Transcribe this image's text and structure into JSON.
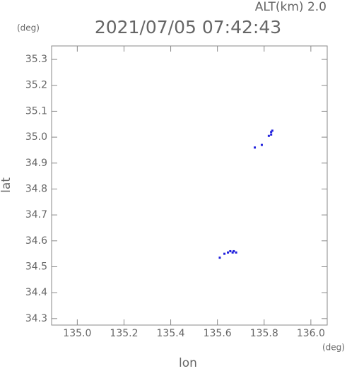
{
  "chart_data": {
    "type": "scatter",
    "title": "2021/07/05 07:42:43",
    "annotation": "ALT(km) 2.0",
    "y_unit": "(deg)",
    "x_unit": "(deg)",
    "x_label": "lon",
    "y_label": "lat",
    "xlim": [
      134.89,
      136.07
    ],
    "ylim": [
      34.275,
      35.352
    ],
    "xticks": [
      {
        "value": 135,
        "label": "135.0"
      },
      135.2,
      135.4,
      135.6,
      135.8,
      {
        "value": 136,
        "label": "136.0"
      }
    ],
    "yticks": [
      34.3,
      34.4,
      34.5,
      34.6,
      34.7,
      34.8,
      34.9,
      {
        "value": 35,
        "label": "35.0"
      },
      35.1,
      35.2,
      35.3
    ],
    "series": [
      {
        "color": "#2222dd",
        "x": [
          135.83,
          135.835,
          135.83,
          135.82,
          135.79,
          135.76,
          135.61,
          135.63,
          135.645,
          135.655,
          135.665,
          135.67,
          135.68
        ],
        "y": [
          35.02,
          35.025,
          35.01,
          35.005,
          34.97,
          34.96,
          34.535,
          34.55,
          34.555,
          34.56,
          34.555,
          34.56,
          34.555
        ]
      }
    ]
  }
}
